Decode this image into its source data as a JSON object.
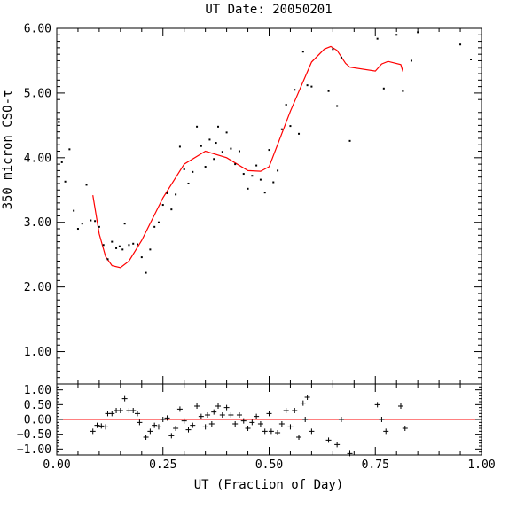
{
  "chart_data": [
    {
      "type": "scatter",
      "title": "UT Date: 20050201",
      "xlabel": "",
      "ylabel": "350 micron CSO-τ",
      "xlim": [
        0.0,
        1.0
      ],
      "ylim": [
        0.5,
        6.0
      ],
      "yticks": [
        1.0,
        2.0,
        3.0,
        4.0,
        5.0,
        6.0
      ],
      "ytick_labels": [
        "1.00",
        "2.00",
        "3.00",
        "4.00",
        "5.00",
        "6.00"
      ],
      "series": [
        {
          "marker": "dot",
          "color": "#000000",
          "points": [
            [
              0.005,
              4.55
            ],
            [
              0.012,
              3.93
            ],
            [
              0.02,
              3.63
            ],
            [
              0.03,
              4.13
            ],
            [
              0.04,
              3.18
            ],
            [
              0.05,
              2.9
            ],
            [
              0.06,
              2.98
            ],
            [
              0.07,
              3.58
            ],
            [
              0.08,
              3.03
            ],
            [
              0.09,
              3.02
            ],
            [
              0.1,
              2.93
            ],
            [
              0.11,
              2.65
            ],
            [
              0.12,
              2.43
            ],
            [
              0.13,
              2.7
            ],
            [
              0.14,
              2.6
            ],
            [
              0.148,
              2.63
            ],
            [
              0.155,
              2.58
            ],
            [
              0.16,
              2.98
            ],
            [
              0.17,
              2.65
            ],
            [
              0.18,
              2.67
            ],
            [
              0.19,
              2.66
            ],
            [
              0.2,
              2.46
            ],
            [
              0.21,
              2.22
            ],
            [
              0.22,
              2.58
            ],
            [
              0.23,
              2.93
            ],
            [
              0.24,
              3.0
            ],
            [
              0.25,
              3.27
            ],
            [
              0.26,
              3.45
            ],
            [
              0.27,
              3.2
            ],
            [
              0.28,
              3.43
            ],
            [
              0.29,
              4.17
            ],
            [
              0.3,
              3.82
            ],
            [
              0.31,
              3.6
            ],
            [
              0.32,
              3.78
            ],
            [
              0.33,
              4.48
            ],
            [
              0.34,
              4.18
            ],
            [
              0.35,
              3.86
            ],
            [
              0.36,
              4.28
            ],
            [
              0.37,
              3.98
            ],
            [
              0.375,
              4.23
            ],
            [
              0.38,
              4.48
            ],
            [
              0.39,
              4.09
            ],
            [
              0.4,
              4.39
            ],
            [
              0.41,
              4.14
            ],
            [
              0.42,
              3.9
            ],
            [
              0.43,
              4.1
            ],
            [
              0.44,
              3.75
            ],
            [
              0.45,
              3.52
            ],
            [
              0.46,
              3.72
            ],
            [
              0.47,
              3.88
            ],
            [
              0.48,
              3.66
            ],
            [
              0.49,
              3.46
            ],
            [
              0.5,
              4.12
            ],
            [
              0.51,
              3.62
            ],
            [
              0.52,
              3.8
            ],
            [
              0.53,
              4.44
            ],
            [
              0.54,
              4.82
            ],
            [
              0.55,
              4.49
            ],
            [
              0.56,
              5.05
            ],
            [
              0.57,
              4.37
            ],
            [
              0.58,
              5.64
            ],
            [
              0.59,
              5.12
            ],
            [
              0.6,
              5.1
            ],
            [
              0.64,
              5.03
            ],
            [
              0.65,
              5.68
            ],
            [
              0.66,
              4.8
            ],
            [
              0.67,
              5.55
            ],
            [
              0.69,
              4.26
            ],
            [
              0.755,
              5.84
            ],
            [
              0.77,
              5.07
            ],
            [
              0.8,
              5.9
            ],
            [
              0.815,
              5.03
            ],
            [
              0.835,
              5.5
            ],
            [
              0.85,
              5.94
            ],
            [
              0.95,
              5.75
            ],
            [
              0.975,
              5.52
            ]
          ]
        },
        {
          "name": "fit",
          "marker": "line",
          "color": "#ff0000",
          "points": [
            [
              0.085,
              3.42
            ],
            [
              0.1,
              2.82
            ],
            [
              0.115,
              2.47
            ],
            [
              0.13,
              2.33
            ],
            [
              0.15,
              2.3
            ],
            [
              0.17,
              2.4
            ],
            [
              0.2,
              2.72
            ],
            [
              0.25,
              3.38
            ],
            [
              0.3,
              3.9
            ],
            [
              0.35,
              4.1
            ],
            [
              0.4,
              4.0
            ],
            [
              0.45,
              3.8
            ],
            [
              0.48,
              3.79
            ],
            [
              0.5,
              3.86
            ],
            [
              0.55,
              4.72
            ],
            [
              0.6,
              5.48
            ],
            [
              0.63,
              5.68
            ],
            [
              0.645,
              5.72
            ],
            [
              0.66,
              5.66
            ],
            [
              0.68,
              5.46
            ],
            [
              0.69,
              5.4
            ],
            [
              0.75,
              5.34
            ],
            [
              0.765,
              5.45
            ],
            [
              0.78,
              5.49
            ],
            [
              0.81,
              5.44
            ],
            [
              0.815,
              5.33
            ]
          ]
        }
      ]
    },
    {
      "type": "scatter",
      "title": "",
      "xlabel": "UT (Fraction of Day)",
      "ylabel": "",
      "xlim": [
        0.0,
        1.0
      ],
      "ylim": [
        -1.2,
        1.2
      ],
      "xticks": [
        0.0,
        0.25,
        0.5,
        0.75,
        1.0
      ],
      "xtick_labels": [
        "0.00",
        "0.25",
        "0.50",
        "0.75",
        "1.00"
      ],
      "yticks": [
        -1.0,
        -0.5,
        0.0,
        0.5,
        1.0
      ],
      "ytick_labels": [
        "−1.00",
        "−0.50",
        "0.00",
        "0.50",
        "1.00"
      ],
      "reference_line": 0.0,
      "series": [
        {
          "marker": "plus",
          "color": "#000000",
          "points": [
            [
              0.085,
              -0.4
            ],
            [
              0.095,
              -0.2
            ],
            [
              0.105,
              -0.22
            ],
            [
              0.115,
              -0.25
            ],
            [
              0.12,
              0.2
            ],
            [
              0.13,
              0.2
            ],
            [
              0.14,
              0.3
            ],
            [
              0.15,
              0.3
            ],
            [
              0.16,
              0.7
            ],
            [
              0.17,
              0.3
            ],
            [
              0.18,
              0.3
            ],
            [
              0.19,
              0.2
            ],
            [
              0.195,
              -0.1
            ],
            [
              0.21,
              -0.6
            ],
            [
              0.22,
              -0.4
            ],
            [
              0.23,
              -0.2
            ],
            [
              0.24,
              -0.25
            ],
            [
              0.25,
              0.0
            ],
            [
              0.26,
              0.05
            ],
            [
              0.27,
              -0.55
            ],
            [
              0.28,
              -0.3
            ],
            [
              0.29,
              0.35
            ],
            [
              0.3,
              -0.05
            ],
            [
              0.31,
              -0.35
            ],
            [
              0.32,
              -0.2
            ],
            [
              0.33,
              0.45
            ],
            [
              0.34,
              0.1
            ],
            [
              0.35,
              -0.25
            ],
            [
              0.355,
              0.15
            ],
            [
              0.365,
              -0.15
            ],
            [
              0.37,
              0.25
            ],
            [
              0.38,
              0.45
            ],
            [
              0.39,
              0.15
            ],
            [
              0.4,
              0.4
            ],
            [
              0.41,
              0.15
            ],
            [
              0.42,
              -0.15
            ],
            [
              0.43,
              0.15
            ],
            [
              0.44,
              -0.05
            ],
            [
              0.45,
              -0.3
            ],
            [
              0.46,
              -0.1
            ],
            [
              0.47,
              0.1
            ],
            [
              0.48,
              -0.15
            ],
            [
              0.49,
              -0.4
            ],
            [
              0.5,
              0.2
            ],
            [
              0.505,
              -0.4
            ],
            [
              0.52,
              -0.45
            ],
            [
              0.53,
              -0.15
            ],
            [
              0.54,
              0.3
            ],
            [
              0.55,
              -0.25
            ],
            [
              0.56,
              0.3
            ],
            [
              0.57,
              -0.6
            ],
            [
              0.58,
              0.55
            ],
            [
              0.585,
              0.0
            ],
            [
              0.59,
              0.75
            ],
            [
              0.6,
              -0.4
            ],
            [
              0.64,
              -0.7
            ],
            [
              0.66,
              -0.85
            ],
            [
              0.67,
              0.0
            ],
            [
              0.69,
              -1.15
            ],
            [
              0.755,
              0.5
            ],
            [
              0.765,
              0.0
            ],
            [
              0.775,
              -0.4
            ],
            [
              0.81,
              0.45
            ],
            [
              0.82,
              -0.3
            ]
          ]
        }
      ]
    }
  ]
}
